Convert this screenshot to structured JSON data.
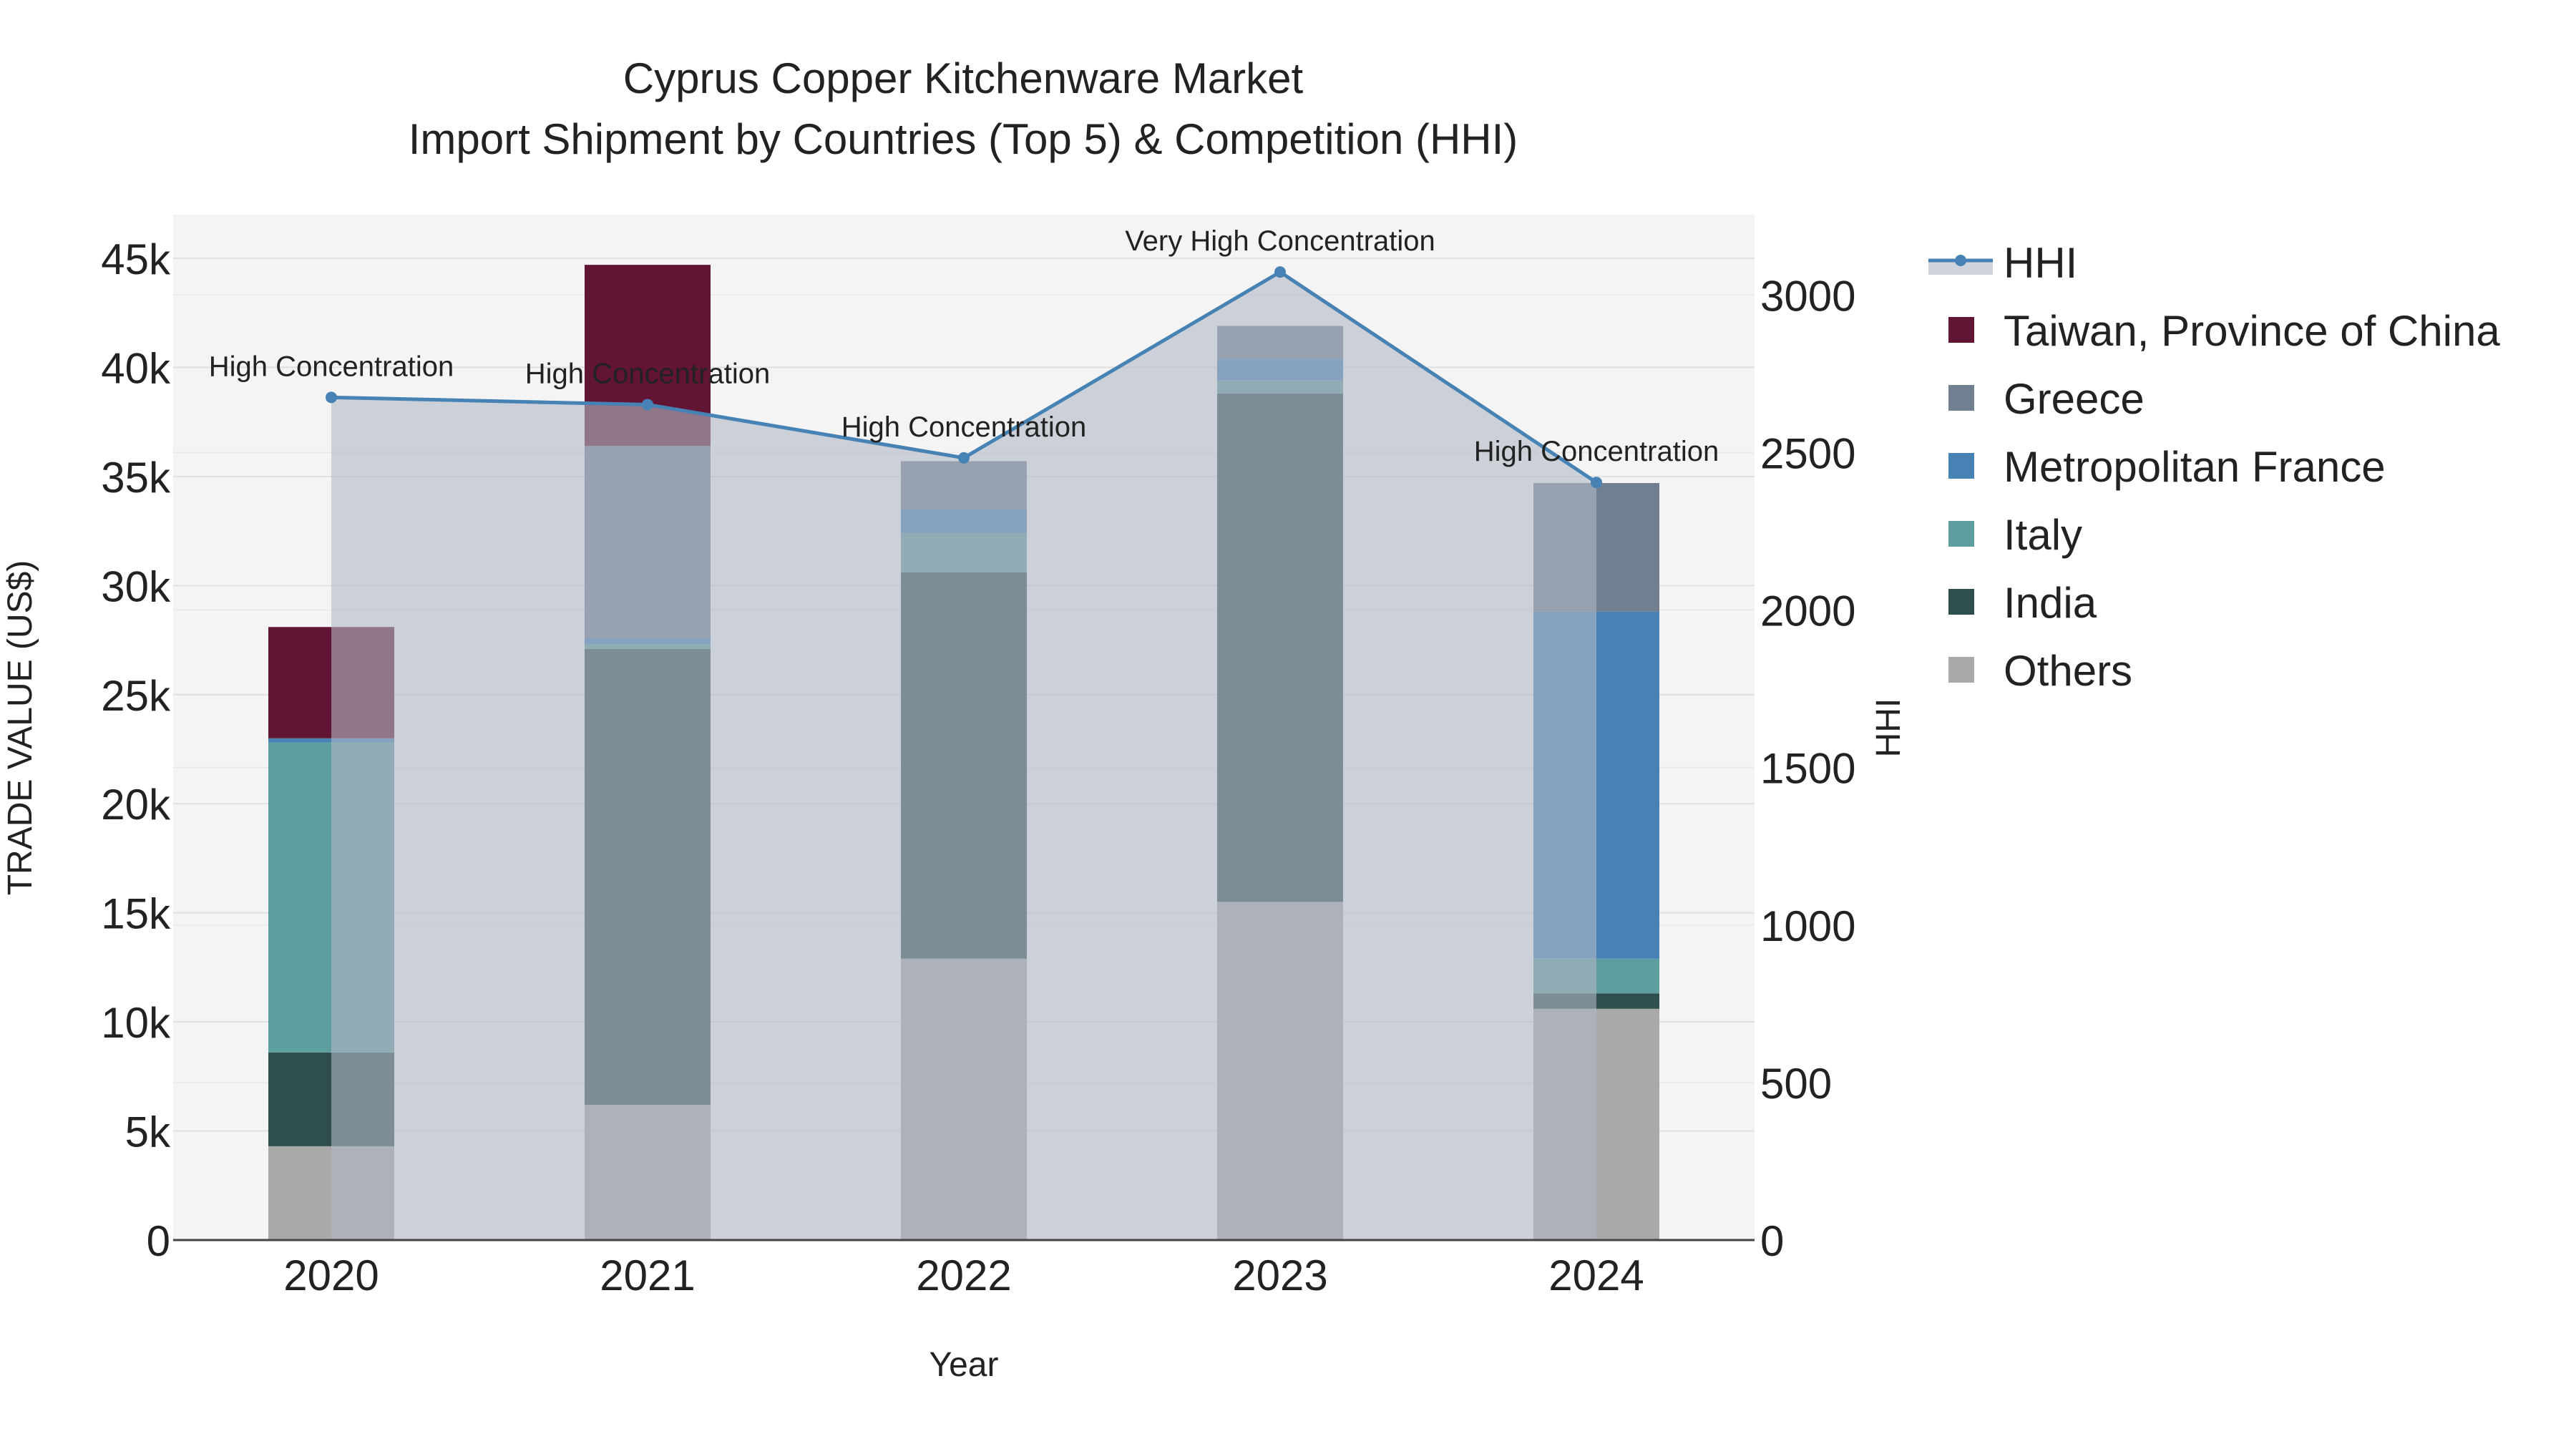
{
  "chart_data": {
    "type": "bar",
    "title": "Cyprus Copper Kitchenware Market",
    "subtitle": "Import Shipment by Countries (Top 5) & Competition (HHI)",
    "xlabel": "Year",
    "ylabel": "TRADE VALUE (US$)",
    "y2label": "HHI",
    "categories": [
      "2020",
      "2021",
      "2022",
      "2023",
      "2024"
    ],
    "ylim": [
      0,
      47000
    ],
    "y2lim": [
      0,
      3255
    ],
    "yticks": [
      0,
      5000,
      10000,
      15000,
      20000,
      25000,
      30000,
      35000,
      40000,
      45000
    ],
    "ytick_labels": [
      "0",
      "5k",
      "10k",
      "15k",
      "20k",
      "25k",
      "30k",
      "35k",
      "40k",
      "45k"
    ],
    "y2ticks": [
      0,
      500,
      1000,
      1500,
      2000,
      2500,
      3000
    ],
    "y2tick_labels": [
      "0",
      "500",
      "1000",
      "1500",
      "2000",
      "2500",
      "3000"
    ],
    "grid": true,
    "legend_position": "right",
    "series": [
      {
        "name": "Others",
        "color": "#a9a9a9",
        "values": [
          4300,
          6200,
          12900,
          15500,
          10600
        ]
      },
      {
        "name": "India",
        "color": "#2f4f4f",
        "values": [
          4300,
          20900,
          17700,
          23300,
          700
        ]
      },
      {
        "name": "Italy",
        "color": "#5f9ea0",
        "values": [
          14200,
          200,
          1800,
          600,
          1600
        ]
      },
      {
        "name": "Metropolitan France",
        "color": "#4682b4",
        "values": [
          200,
          300,
          1100,
          1000,
          15900
        ]
      },
      {
        "name": "Greece",
        "color": "#708090",
        "values": [
          0,
          8800,
          2200,
          1500,
          5900
        ]
      },
      {
        "name": "Taiwan, Province of China",
        "color": "#611434",
        "values": [
          5100,
          8300,
          0,
          0,
          0
        ]
      }
    ],
    "hhi": {
      "name": "HHI",
      "color": "#4682b4",
      "values": [
        2675,
        2652,
        2483,
        3073,
        2405
      ],
      "annotations": [
        "High Concentration",
        "High Concentration",
        "High Concentration",
        "Very High Concentration",
        "High Concentration"
      ]
    },
    "legend_order": [
      "HHI",
      "Taiwan, Province of China",
      "Greece",
      "Metropolitan France",
      "Italy",
      "India",
      "Others"
    ]
  }
}
